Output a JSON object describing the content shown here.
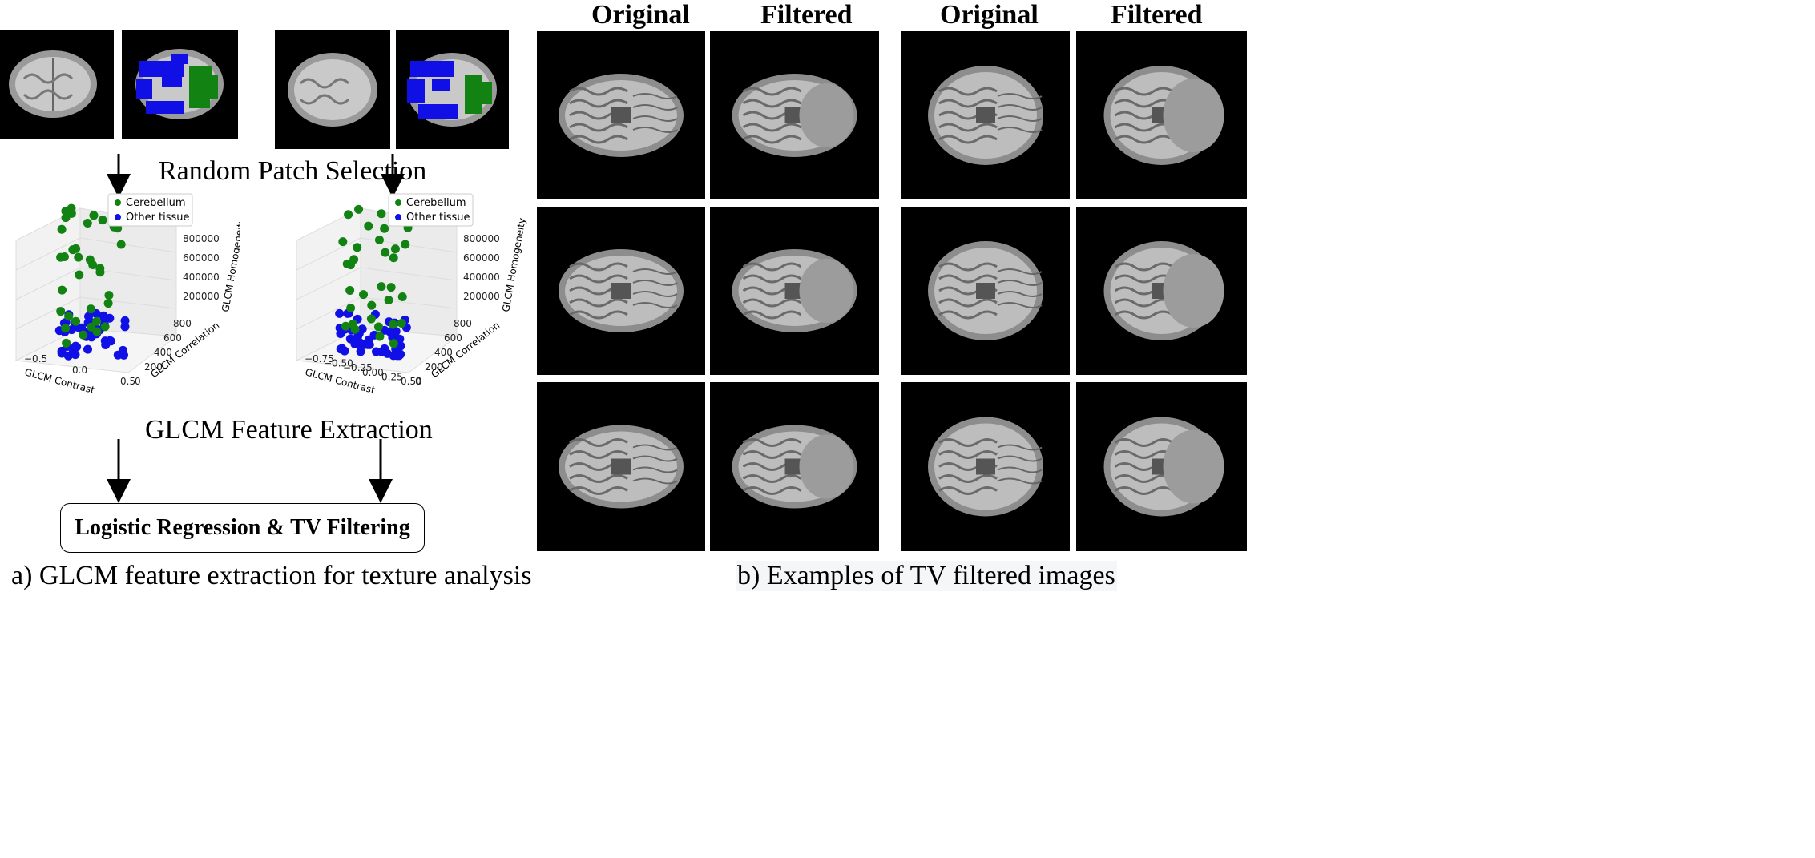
{
  "panel_a": {
    "random_patch_label": "Random Patch Selection",
    "glcm_feature_label": "GLCM Feature Extraction",
    "box_label": "Logistic Regression & TV Filtering",
    "caption": "a)  GLCM feature extraction for texture analysis"
  },
  "panel_b": {
    "col_headers": [
      "Original",
      "Filtered",
      "Original",
      "Filtered"
    ],
    "caption": "b) Examples of TV filtered images"
  },
  "plot_left": {
    "legend": [
      "Cerebellum",
      "Other tissue"
    ],
    "x_label": "GLCM Contrast",
    "y_label": "GLCM Correlation",
    "z_label": "GLCM Homogeneity",
    "x_ticks": [
      "−0.5",
      "0.0",
      "0.5"
    ],
    "y_ticks": [
      "0",
      "200",
      "400",
      "600",
      "800"
    ],
    "z_ticks": [
      "200000",
      "400000",
      "600000",
      "800000"
    ]
  },
  "plot_right": {
    "legend": [
      "Cerebellum",
      "Other tissue"
    ],
    "x_label": "GLCM Contrast",
    "y_label": "GLCM Correlation",
    "z_label": "GLCM Homogeneity",
    "x_ticks": [
      "−0.75",
      "−0.50",
      "−0.25",
      "0.00",
      "0.25",
      "0.50"
    ],
    "y_ticks": [
      "0",
      "200",
      "400",
      "600",
      "800"
    ],
    "z_ticks": [
      "200000",
      "400000",
      "600000",
      "800000"
    ]
  },
  "colors": {
    "cerebellum": "#128212",
    "other_tissue": "#1010e6",
    "pane": "#f2f2f2"
  }
}
